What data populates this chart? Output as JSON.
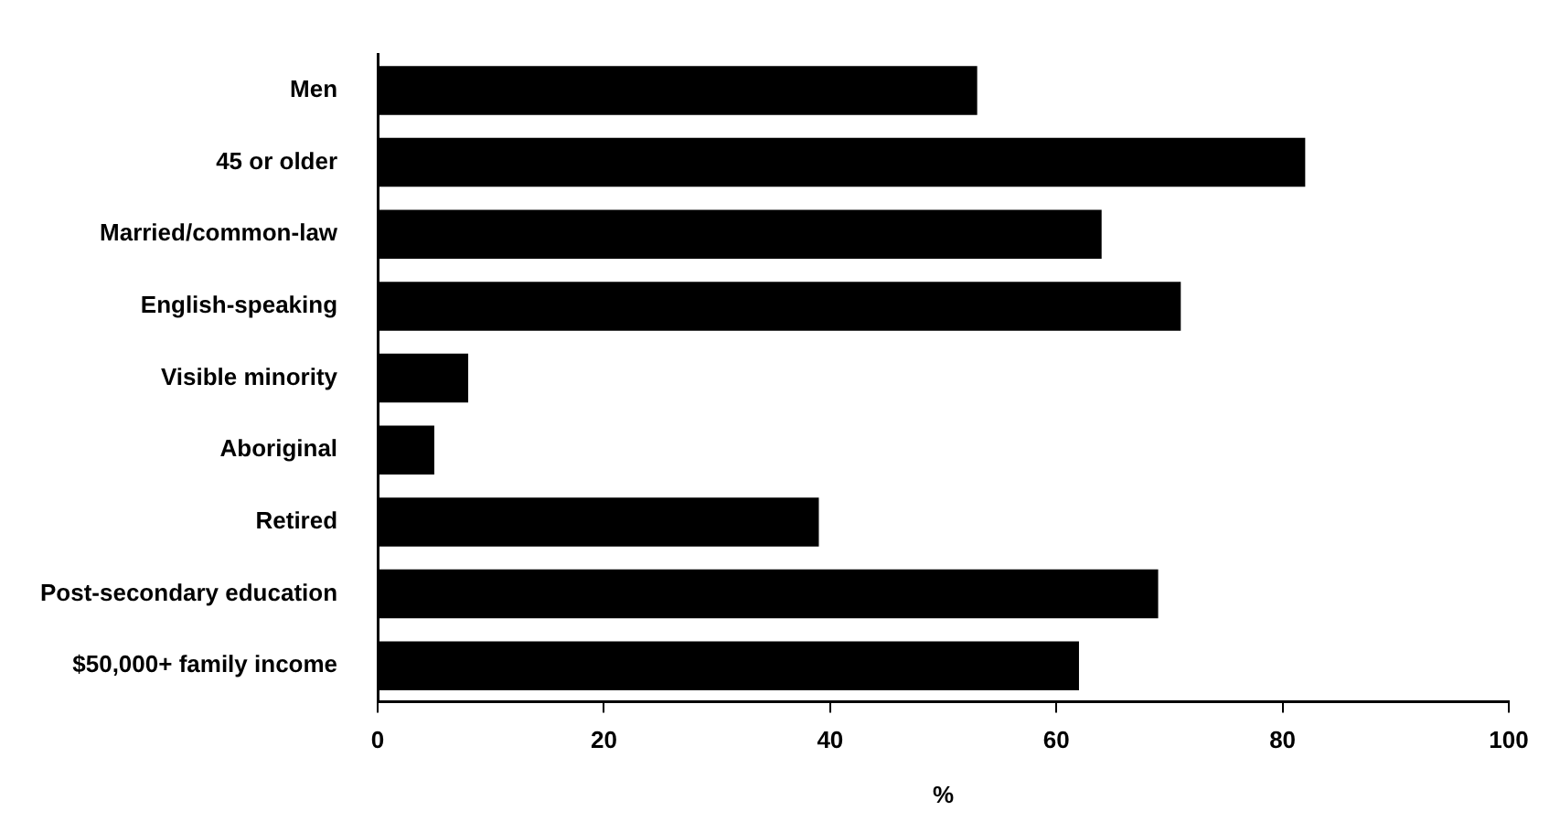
{
  "chart_data": {
    "type": "bar",
    "orientation": "horizontal",
    "xlabel": "%",
    "categories": [
      "Men",
      "45 or older",
      "Married/common-law",
      "English-speaking",
      "Visible minority",
      "Aboriginal",
      "Retired",
      "Post-secondary education",
      "$50,000+ family income"
    ],
    "values": [
      53,
      82,
      64,
      71,
      8,
      5,
      39,
      69,
      62
    ],
    "color": "#000000",
    "xlim": [
      0,
      100
    ],
    "xticks": [
      0,
      20,
      40,
      60,
      80,
      100
    ],
    "grid": false,
    "legend": false
  }
}
